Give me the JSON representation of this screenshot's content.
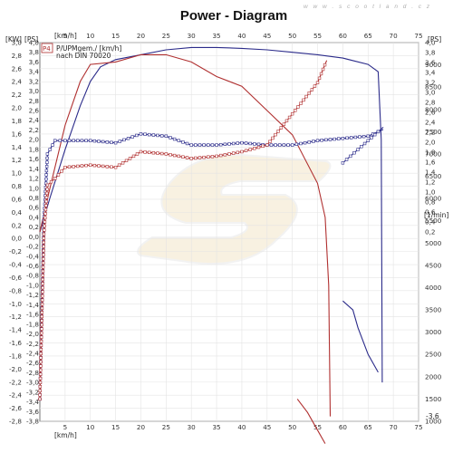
{
  "watermark": "w w w . s c o o t l a n d . c z",
  "chart_data": {
    "type": "line",
    "title": "Power - Diagram",
    "x_axis": {
      "unit": "[km/h]",
      "range": [
        0,
        75
      ],
      "ticks": [
        "5",
        "10",
        "15",
        "20",
        "25",
        "30",
        "35",
        "40",
        "45",
        "50",
        "55",
        "60",
        "65",
        "70",
        "75"
      ]
    },
    "y_left_outer": {
      "unit": "[KW]",
      "range": [
        -2.8,
        3.0
      ],
      "ticks": [
        "3,0",
        "2,8",
        "2,6",
        "2,4",
        "2,2",
        "2,0",
        "1,8",
        "1,6",
        "1,4",
        "1,2",
        "1,0",
        "0,8",
        "0,6",
        "0,4",
        "0,2",
        "0,0",
        "-0,2",
        "-0,4",
        "-0,6",
        "-0,8",
        "-1,0",
        "-1,2",
        "-1,4",
        "-1,6",
        "-1,8",
        "-2,0",
        "-2,2",
        "-2,4",
        "-2,6",
        "-2,8"
      ]
    },
    "y_left_inner": {
      "unit": "[PS]",
      "range": [
        -3.8,
        4.0
      ],
      "ticks": [
        "4,0",
        "3,8",
        "3,6",
        "3,4",
        "3,2",
        "3,0",
        "2,8",
        "2,6",
        "2,4",
        "2,2",
        "2,0",
        "1,8",
        "1,6",
        "1,4",
        "1,2",
        "1,0",
        "0,8",
        "0,6",
        "0,4",
        "0,2",
        "0,0",
        "-0,2",
        "-0,4",
        "-0,6",
        "-0,8",
        "-1,0",
        "-1,2",
        "-1,4",
        "-1,6",
        "-1,8",
        "-2,0",
        "-2,2",
        "-2,4",
        "-2,6",
        "-2,8",
        "-3,0",
        "-3,2",
        "-3,4",
        "-3,6",
        "-3,8"
      ]
    },
    "y_right_ps": {
      "unit": "[PS]",
      "range": [
        -3.6,
        4.0
      ],
      "ticks": [
        "4,0",
        "3,8",
        "3,6",
        "3,4",
        "3,2",
        "3,0",
        "2,8",
        "2,6",
        "2,4",
        "2,2",
        "2,0",
        "1,8",
        "1,6",
        "1,4",
        "1,2",
        "1,0",
        "0,8",
        "0,6",
        "0,4",
        "0,2"
      ],
      "bottom_tick": "-3,6"
    },
    "y_right_rpm": {
      "unit": "[1/min]",
      "range": [
        1000,
        9500
      ],
      "ticks": [
        "9000",
        "8500",
        "8000",
        "7500",
        "7000",
        "6500",
        "6000",
        "5500",
        "5000",
        "4500",
        "4000",
        "3500",
        "3000",
        "2500",
        "2000",
        "1500",
        "1000"
      ]
    },
    "legend": {
      "marker": "P4",
      "line1": "P/UPMgem./ [km/h]",
      "line2": "nach DIN 70020"
    },
    "series": [
      {
        "color": "#2b2b8a",
        "kind": "power_ps",
        "points": [
          [
            0,
            0.1
          ],
          [
            2,
            0.8
          ],
          [
            5,
            1.8
          ],
          [
            8,
            2.7
          ],
          [
            10,
            3.2
          ],
          [
            12,
            3.5
          ],
          [
            15,
            3.65
          ],
          [
            20,
            3.75
          ],
          [
            25,
            3.85
          ],
          [
            30,
            3.9
          ],
          [
            35,
            3.9
          ],
          [
            40,
            3.88
          ],
          [
            45,
            3.85
          ],
          [
            50,
            3.8
          ],
          [
            55,
            3.75
          ],
          [
            60,
            3.68
          ],
          [
            65,
            3.55
          ],
          [
            67,
            3.4
          ],
          [
            67.6,
            2.0
          ],
          [
            67.8,
            -3.0
          ]
        ]
      },
      {
        "color": "#b03030",
        "kind": "power_ps",
        "points": [
          [
            0,
            0.1
          ],
          [
            2,
            1.0
          ],
          [
            5,
            2.3
          ],
          [
            8,
            3.2
          ],
          [
            10,
            3.55
          ],
          [
            15,
            3.6
          ],
          [
            20,
            3.75
          ],
          [
            25,
            3.75
          ],
          [
            30,
            3.6
          ],
          [
            35,
            3.3
          ],
          [
            40,
            3.1
          ],
          [
            45,
            2.6
          ],
          [
            50,
            2.1
          ],
          [
            55,
            1.1
          ],
          [
            56.5,
            0.4
          ],
          [
            57.2,
            -1.0
          ],
          [
            57.5,
            -3.7
          ]
        ]
      },
      {
        "color": "#2b2b8a",
        "kind": "rpm",
        "markers": true,
        "points": [
          [
            0,
            1500
          ],
          [
            0.8,
            5500
          ],
          [
            1.5,
            7000
          ],
          [
            3,
            7300
          ],
          [
            5,
            7300
          ],
          [
            10,
            7300
          ],
          [
            15,
            7250
          ],
          [
            20,
            7450
          ],
          [
            25,
            7400
          ],
          [
            30,
            7200
          ],
          [
            35,
            7200
          ],
          [
            40,
            7250
          ],
          [
            45,
            7200
          ],
          [
            50,
            7200
          ],
          [
            55,
            7300
          ],
          [
            60,
            7350
          ],
          [
            65,
            7400
          ],
          [
            67,
            7500
          ],
          [
            68,
            7550
          ]
        ]
      },
      {
        "color": "#b03030",
        "kind": "rpm",
        "markers": true,
        "points": [
          [
            0,
            1500
          ],
          [
            0.8,
            5200
          ],
          [
            1.5,
            6300
          ],
          [
            3,
            6450
          ],
          [
            5,
            6700
          ],
          [
            10,
            6750
          ],
          [
            15,
            6700
          ],
          [
            20,
            7050
          ],
          [
            25,
            7000
          ],
          [
            30,
            6900
          ],
          [
            35,
            6950
          ],
          [
            40,
            7050
          ],
          [
            45,
            7200
          ],
          [
            50,
            7900
          ],
          [
            55,
            8600
          ],
          [
            56.8,
            9100
          ]
        ]
      },
      {
        "color": "#2b2b8a",
        "kind": "rpm",
        "markers": true,
        "points": [
          [
            60,
            6800
          ],
          [
            63,
            7100
          ],
          [
            65,
            7300
          ],
          [
            67,
            7500
          ],
          [
            68,
            7600
          ]
        ]
      },
      {
        "color": "#2b2b8a",
        "kind": "rpm",
        "markers": false,
        "points": [
          [
            60,
            3700
          ],
          [
            62,
            3500
          ],
          [
            63,
            3100
          ],
          [
            65,
            2500
          ],
          [
            67,
            2100
          ]
        ]
      },
      {
        "color": "#b03030",
        "kind": "rpm",
        "markers": false,
        "points": [
          [
            51,
            1500
          ],
          [
            53,
            1200
          ],
          [
            55,
            800
          ],
          [
            56.5,
            500
          ]
        ]
      }
    ]
  }
}
